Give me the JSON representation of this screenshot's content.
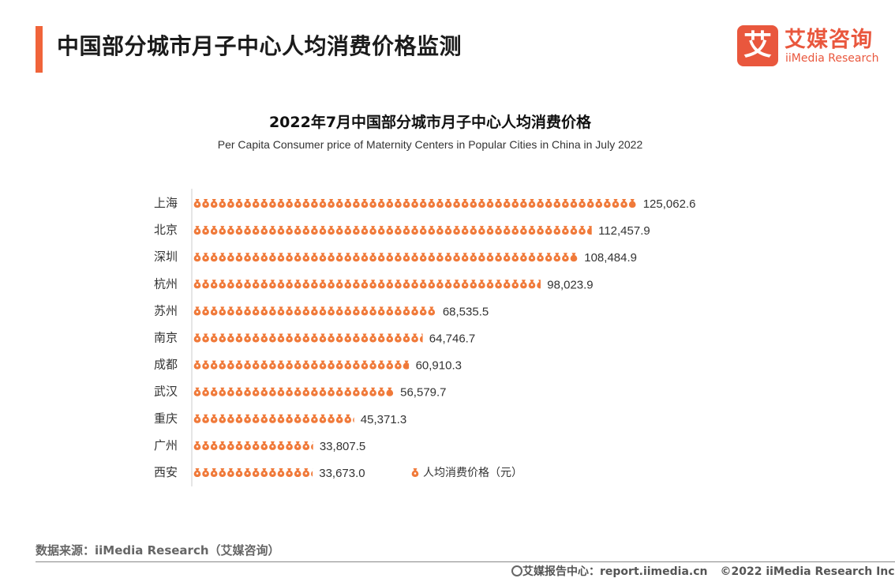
{
  "header": {
    "title": "中国部分城市月子中心人均消费价格监测",
    "accent_color": "#f0643a"
  },
  "logo": {
    "mark_char": "艾",
    "name_cn": "艾媒咨询",
    "name_en": "iiMedia Research",
    "color": "#e9573d"
  },
  "chart_data": {
    "type": "bar",
    "title": "2022年7月中国部分城市月子中心人均消费价格",
    "subtitle": "Per Capita Consumer price of Maternity Centers in Popular Cities in China in July 2022",
    "categories": [
      "上海",
      "北京",
      "深圳",
      "杭州",
      "苏州",
      "南京",
      "成都",
      "武汉",
      "重庆",
      "广州",
      "西安"
    ],
    "values": [
      125062.6,
      112457.9,
      108484.9,
      98023.9,
      68535.5,
      64746.7,
      60910.3,
      56579.7,
      45371.3,
      33807.5,
      33673.0
    ],
    "value_labels": [
      "125,062.6",
      "112,457.9",
      "108,484.9",
      "98,023.9",
      "68,535.5",
      "64,746.7",
      "60,910.3",
      "56,579.7",
      "45,371.3",
      "33,807.5",
      "33,673.0"
    ],
    "series": [
      {
        "name": "人均消费价格（元）",
        "values": [
          125062.6,
          112457.9,
          108484.9,
          98023.9,
          68535.5,
          64746.7,
          60910.3,
          56579.7,
          45371.3,
          33807.5,
          33673.0
        ]
      }
    ],
    "orientation": "horizontal",
    "mark_style": "money-bag-icons",
    "bar_color": "#f07a3a",
    "legend_placement": "bottom-right",
    "grid": false
  },
  "source": "数据来源：iiMedia Research（艾媒咨询）",
  "footer": {
    "report_site": "艾媒报告中心：report.iimedia.cn",
    "copyright": "©2022  iiMedia Research  Inc",
    "icon": "globe-icon"
  }
}
